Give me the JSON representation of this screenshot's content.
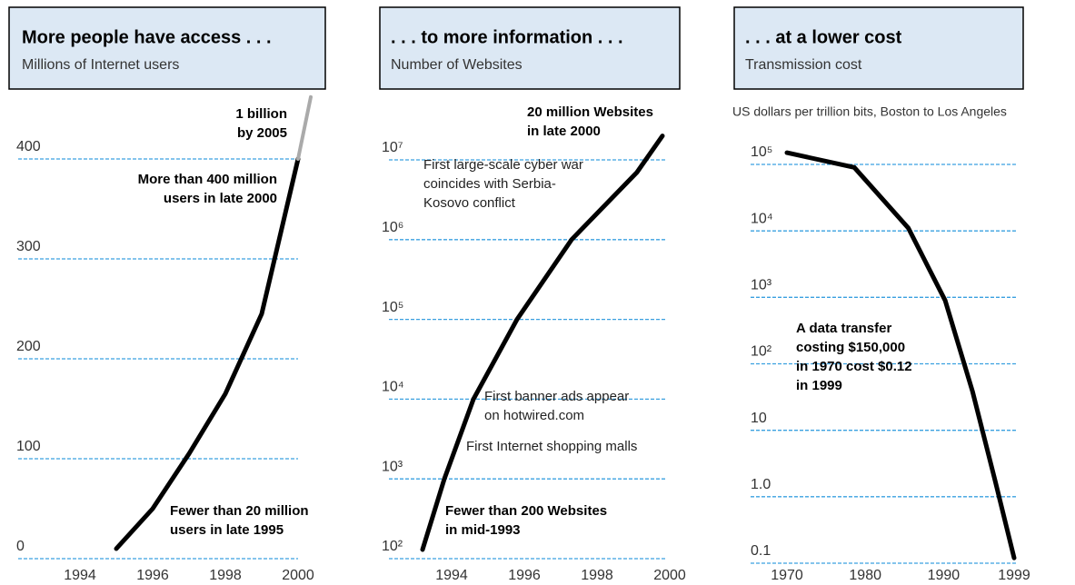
{
  "chart_data": [
    {
      "type": "line",
      "title": "More people have access . . .",
      "subtitle": "Millions of Internet users",
      "x": [
        1995,
        1996,
        1997,
        1998,
        1999,
        2000
      ],
      "series": [
        {
          "color": "#000000",
          "x": [
            1995,
            1996,
            1997,
            1998,
            1999,
            2000
          ],
          "values": [
            10,
            50,
            105,
            165,
            245,
            400
          ]
        },
        {
          "color": "#aaaaaa",
          "x": [
            2000,
            2000.35
          ],
          "values": [
            400,
            462
          ]
        }
      ],
      "xlim": [
        1994,
        2000
      ],
      "ylim": [
        0,
        465
      ],
      "xticks": [
        1994,
        1996,
        1998,
        2000
      ],
      "yticks": [
        0,
        100,
        200,
        300,
        400
      ],
      "log_y": false,
      "grid": true,
      "annotations": [
        {
          "lines": [
            "1 billion",
            "by 2005"
          ]
        },
        {
          "lines": [
            "More than 400 million",
            "users in late 2000"
          ]
        },
        {
          "lines": [
            "Fewer than 20 million",
            "users in late 1995"
          ]
        }
      ]
    },
    {
      "type": "line",
      "title": ". . . to more information . . .",
      "subtitle": "Number of Websites",
      "x": [
        1993.2,
        1993.8,
        1994.6,
        1995.8,
        1997.3,
        1999.1,
        1999.8
      ],
      "series": [
        {
          "color": "#000000",
          "x": [
            1993.2,
            1993.8,
            1994.6,
            1995.8,
            1997.3,
            1999.1,
            1999.8
          ],
          "values": [
            130,
            1000,
            10000,
            100000,
            1000000,
            7000000,
            20000000
          ]
        }
      ],
      "xlim": [
        1993,
        2000.2
      ],
      "ylim": [
        100,
        10000000
      ],
      "xticks": [
        1994,
        1996,
        1998,
        2000
      ],
      "yticks": [
        {
          "value": 100,
          "label": "10²"
        },
        {
          "value": 1000,
          "label": "10³"
        },
        {
          "value": 10000,
          "label": "10⁴"
        },
        {
          "value": 100000,
          "label": "10⁵"
        },
        {
          "value": 1000000,
          "label": "10⁶"
        },
        {
          "value": 10000000,
          "label": "10⁷"
        }
      ],
      "log_y": true,
      "grid": true,
      "annotations": [
        {
          "lines": [
            "20 million Websites",
            "in late 2000"
          ]
        },
        {
          "lines": [
            "First large-scale cyber war",
            "coincides with Serbia-",
            "Kosovo conflict"
          ]
        },
        {
          "lines": [
            "First banner ads appear",
            "on hotwired.com"
          ]
        },
        {
          "lines": [
            "First Internet shopping malls"
          ]
        },
        {
          "lines": [
            "Fewer than 200 Websites",
            "in mid-1993"
          ]
        }
      ]
    },
    {
      "type": "line",
      "title": ". . . at a lower cost",
      "subtitle": "Transmission cost",
      "ylabel": "US dollars per trillion bits, Boston to Los Angeles",
      "x": [
        1970,
        1978.6,
        1985.5,
        1990.2,
        1993.7,
        1996.6,
        1999
      ],
      "series": [
        {
          "color": "#000000",
          "x": [
            1970,
            1978.6,
            1985.5,
            1990.2,
            1993.7,
            1996.6,
            1999
          ],
          "values": [
            150000,
            90000,
            11000,
            900,
            38,
            1.7,
            0.12
          ]
        }
      ],
      "xlim": [
        1970,
        1999
      ],
      "ylim": [
        0.1,
        100000
      ],
      "xticks": [
        1970,
        1980,
        1990,
        1999
      ],
      "yticks": [
        0.1,
        {
          "value": 1,
          "label": "1.0"
        },
        10,
        {
          "value": 100,
          "label": "10²"
        },
        {
          "value": 1000,
          "label": "10³"
        },
        {
          "value": 10000,
          "label": "10⁴"
        },
        {
          "value": 100000,
          "label": "10⁵"
        }
      ],
      "log_y": true,
      "grid": true,
      "annotations": [
        {
          "lines": [
            "A data transfer",
            "costing $150,000",
            "in 1970 cost $0.12",
            "in 1999"
          ]
        }
      ]
    }
  ]
}
